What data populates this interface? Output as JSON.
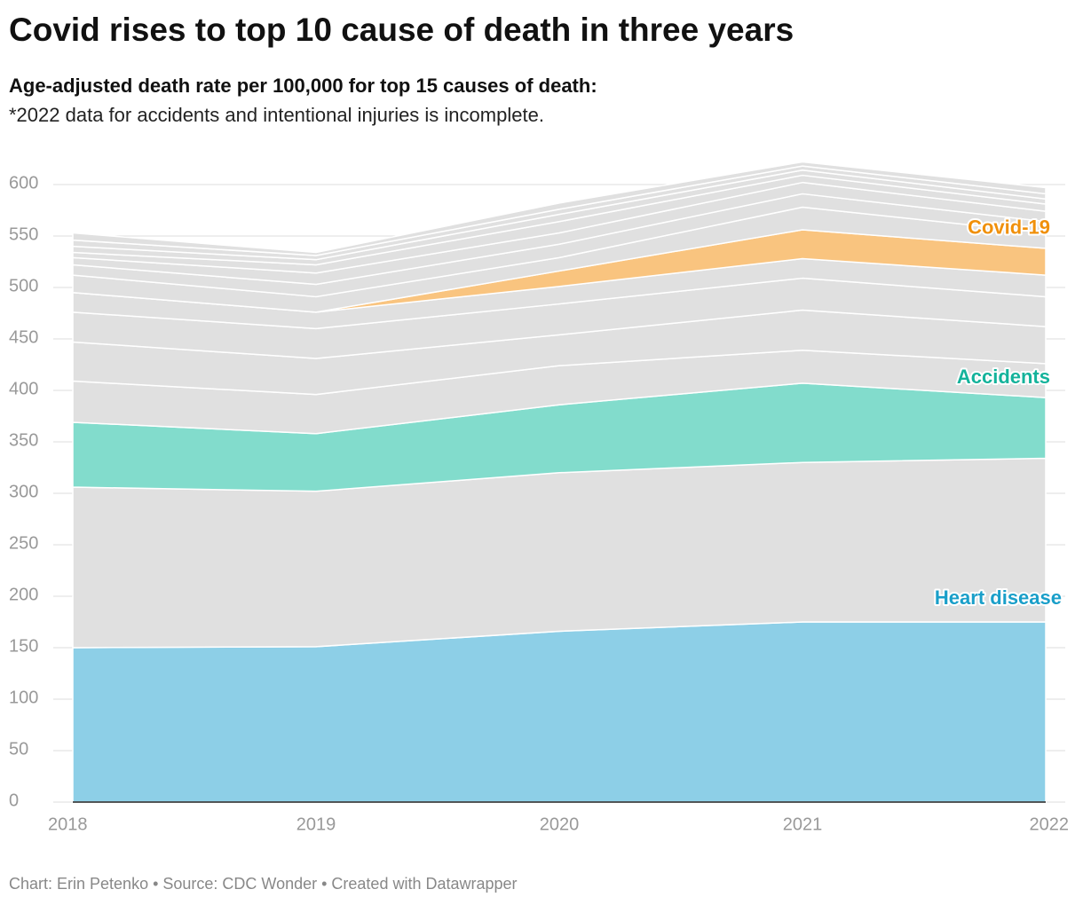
{
  "chart_data": {
    "type": "stacked_area",
    "title": "Covid rises to top 10 cause of death in three years",
    "subtitle": "Age-adjusted death rate per 100,000 for top 15 causes of death:",
    "note": "*2022 data for accidents and intentional injuries is incomplete.",
    "footer": "Chart: Erin Petenko • Source: CDC Wonder • Created with Datawrapper",
    "x": [
      2018,
      2019,
      2020,
      2021,
      2022
    ],
    "xlim": [
      2018,
      2022
    ],
    "xticks": [
      2018,
      2019,
      2020,
      2021,
      2022
    ],
    "ylim": [
      0,
      600
    ],
    "yticks": [
      0,
      50,
      100,
      150,
      200,
      250,
      300,
      350,
      400,
      450,
      500,
      550,
      600
    ],
    "grid": true,
    "series": [
      {
        "name": "Heart disease",
        "color": "#8dcfe7",
        "label_color": "#1a9fc9",
        "values": [
          150,
          151,
          166,
          175,
          175
        ]
      },
      {
        "color": "#e0e0e0",
        "values": [
          156,
          151,
          154,
          155,
          159
        ]
      },
      {
        "name": "Accidents",
        "color": "#82dccc",
        "label_color": "#14b39b",
        "values": [
          63,
          56,
          66,
          77,
          59
        ]
      },
      {
        "color": "#e0e0e0",
        "values": [
          40,
          38,
          38,
          32,
          33
        ]
      },
      {
        "color": "#e0e0e0",
        "values": [
          38,
          35,
          30,
          39,
          36
        ]
      },
      {
        "color": "#e0e0e0",
        "values": [
          29,
          29,
          30,
          31,
          29
        ]
      },
      {
        "color": "#e0e0e0",
        "values": [
          19,
          16,
          17,
          19,
          21
        ]
      },
      {
        "name": "Covid-19",
        "color": "#f9c47f",
        "label_color": "#f0900a",
        "values": [
          0,
          0,
          15,
          28,
          26
        ]
      },
      {
        "color": "#e0e0e0",
        "values": [
          17,
          15,
          13,
          22,
          15
        ]
      },
      {
        "color": "#e0e0e0",
        "values": [
          10,
          12,
          13,
          13,
          11
        ]
      },
      {
        "color": "#e0e0e0",
        "values": [
          7,
          11,
          11,
          11,
          10
        ]
      },
      {
        "color": "#e0e0e0",
        "values": [
          5,
          8,
          11,
          7,
          7
        ]
      },
      {
        "color": "#e0e0e0",
        "values": [
          6,
          5,
          7,
          5,
          5
        ]
      },
      {
        "color": "#e0e0e0",
        "values": [
          6,
          4,
          5,
          4,
          5
        ]
      },
      {
        "color": "#e0e0e0",
        "values": [
          7,
          3,
          6,
          4,
          6
        ]
      }
    ]
  }
}
